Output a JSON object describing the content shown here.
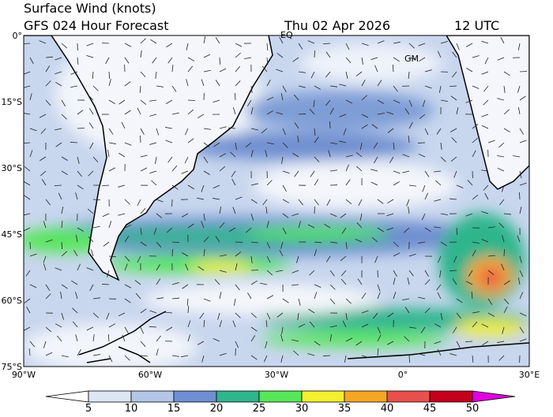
{
  "header": {
    "title": "Surface Wind (knots)",
    "subtitle": "GFS 024 Hour Forecast",
    "date": "Thu 02 Apr 2026",
    "time": "12 UTC"
  },
  "map": {
    "lat_labels": [
      "0°",
      "15°S",
      "30°S",
      "45°S",
      "60°S",
      "75°S"
    ],
    "lon_labels": [
      "90°W",
      "60°W",
      "30°W",
      "0°",
      "30°E"
    ],
    "markers": [
      "EQ",
      "GM"
    ]
  },
  "colorbar": {
    "ticks": [
      5,
      10,
      15,
      20,
      25,
      30,
      35,
      40,
      45,
      50
    ],
    "colors": [
      "#ffffff",
      "#dde6f3",
      "#b3c6e7",
      "#6f8fd0",
      "#2fb58c",
      "#57e65a",
      "#f3f02e",
      "#f5a623",
      "#e8514d",
      "#c4001c",
      "#e000e0"
    ]
  }
}
